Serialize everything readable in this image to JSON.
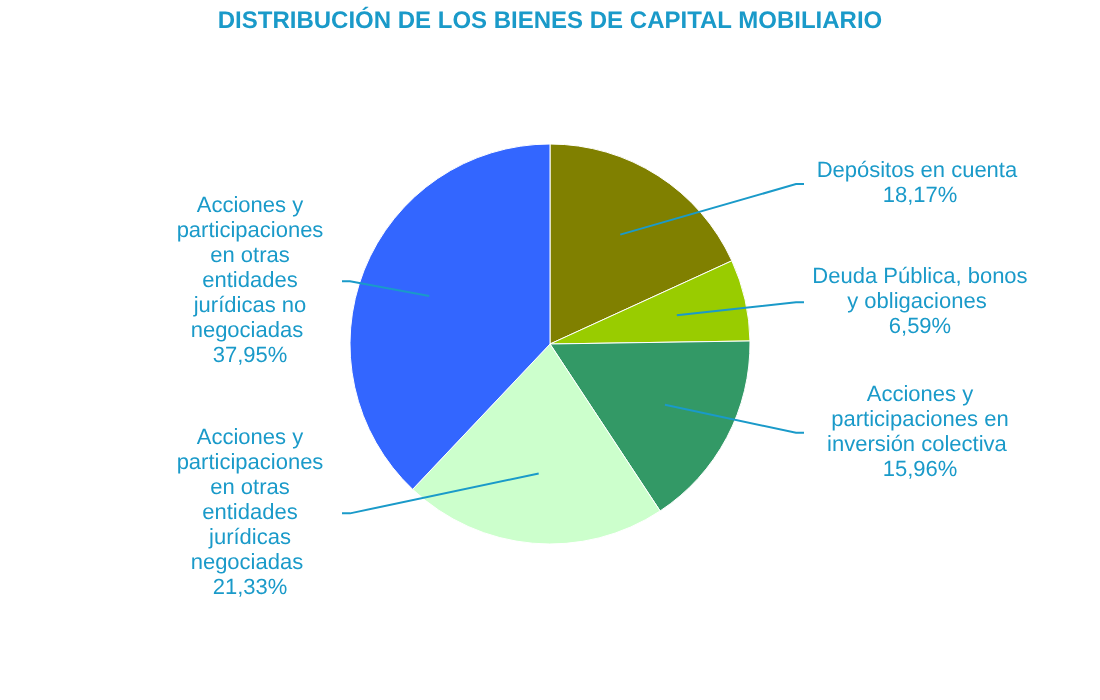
{
  "chart_data": {
    "type": "pie",
    "title": "DISTRIBUCIÓN DE LOS BIENES DE CAPITAL MOBILIARIO",
    "categories": [
      "Depósitos en cuenta",
      "Deuda Pública, bonos y obligaciones",
      "Acciones y participaciones en inversión colectiva",
      "Acciones y participaciones en otras entidades jurídicas negociadas",
      "Acciones y participaciones en otras entidades jurídicas no negociadas"
    ],
    "values": [
      18.17,
      6.59,
      15.96,
      21.33,
      37.95
    ],
    "value_labels": [
      "18,17%",
      "6,59%",
      "15,96%",
      "21,33%",
      "37,95%"
    ],
    "colors": [
      "#808000",
      "#99cc00",
      "#339966",
      "#ccffcc",
      "#3366ff"
    ]
  }
}
